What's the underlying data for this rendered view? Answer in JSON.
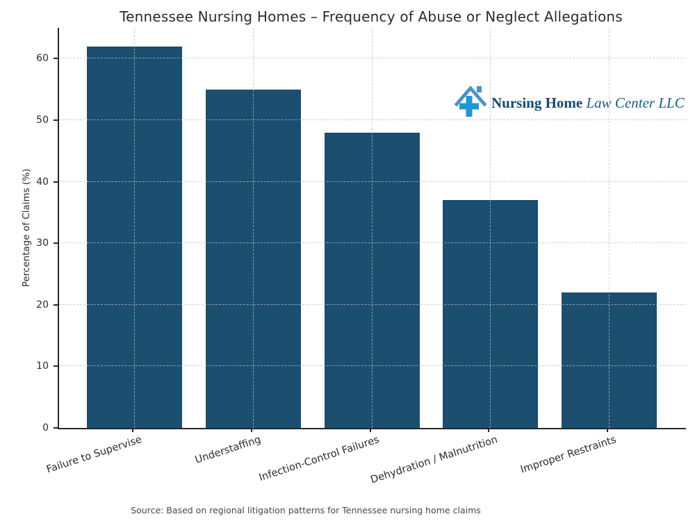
{
  "title": "Tennessee Nursing Homes – Frequency of Abuse or Neglect Allegations",
  "logo": {
    "icon": "house-cross-icon",
    "name_bold": "Nursing Home",
    "name_rest": "Law Center LLC",
    "roof_color": "#4b93c9",
    "cross_color": "#2097d4"
  },
  "source": "Source: Based on regional litigation patterns for Tennessee nursing home claims",
  "chart_data": {
    "type": "bar",
    "title": "Tennessee Nursing Homes – Frequency of Abuse or Neglect Allegations",
    "categories": [
      "Failure to Supervise",
      "Understaffing",
      "Infection-Control Failures",
      "Dehydration / Malnutrition",
      "Improper Restraints"
    ],
    "values": [
      62,
      55,
      48,
      37,
      22
    ],
    "xlabel": "",
    "ylabel": "Percentage of Claims (%)",
    "yticks": [
      0,
      10,
      20,
      30,
      40,
      50,
      60
    ],
    "ylim": [
      0,
      65
    ],
    "grid": true,
    "grid_style": "dashed",
    "legend": "none",
    "bar_color": "#1b4e6f",
    "xtick_rotation_deg": 18
  }
}
